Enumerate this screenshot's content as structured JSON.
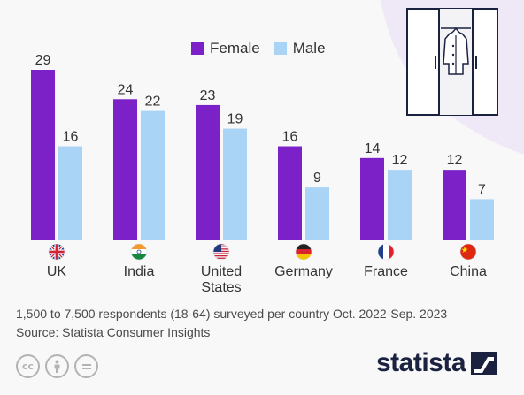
{
  "colors": {
    "female": "#7b21c7",
    "male": "#a9d4f5",
    "text": "#333333",
    "brand": "#1b2240"
  },
  "legend": {
    "female": "Female",
    "male": "Male"
  },
  "chart_data": {
    "type": "bar",
    "categories": [
      "UK",
      "India",
      "United States",
      "Germany",
      "France",
      "China"
    ],
    "category_lines": [
      [
        "UK"
      ],
      [
        "India"
      ],
      [
        "United",
        "States"
      ],
      [
        "Germany"
      ],
      [
        "France"
      ],
      [
        "China"
      ]
    ],
    "flags": [
      "uk-flag-icon",
      "india-flag-icon",
      "us-flag-icon",
      "germany-flag-icon",
      "france-flag-icon",
      "china-flag-icon"
    ],
    "series": [
      {
        "name": "Female",
        "values": [
          29,
          24,
          23,
          16,
          14,
          12
        ]
      },
      {
        "name": "Male",
        "values": [
          16,
          22,
          19,
          9,
          12,
          7
        ]
      }
    ],
    "ylim": [
      0,
      29
    ],
    "grid": false,
    "legend_position": "top"
  },
  "footer": {
    "note": "1,500 to 7,500 respondents (18-64) surveyed per country Oct. 2022-Sep. 2023",
    "source": "Source: Statista Consumer Insights",
    "brand": "statista"
  },
  "license_icons": [
    "cc-icon",
    "attribution-icon",
    "no-derivatives-icon"
  ]
}
